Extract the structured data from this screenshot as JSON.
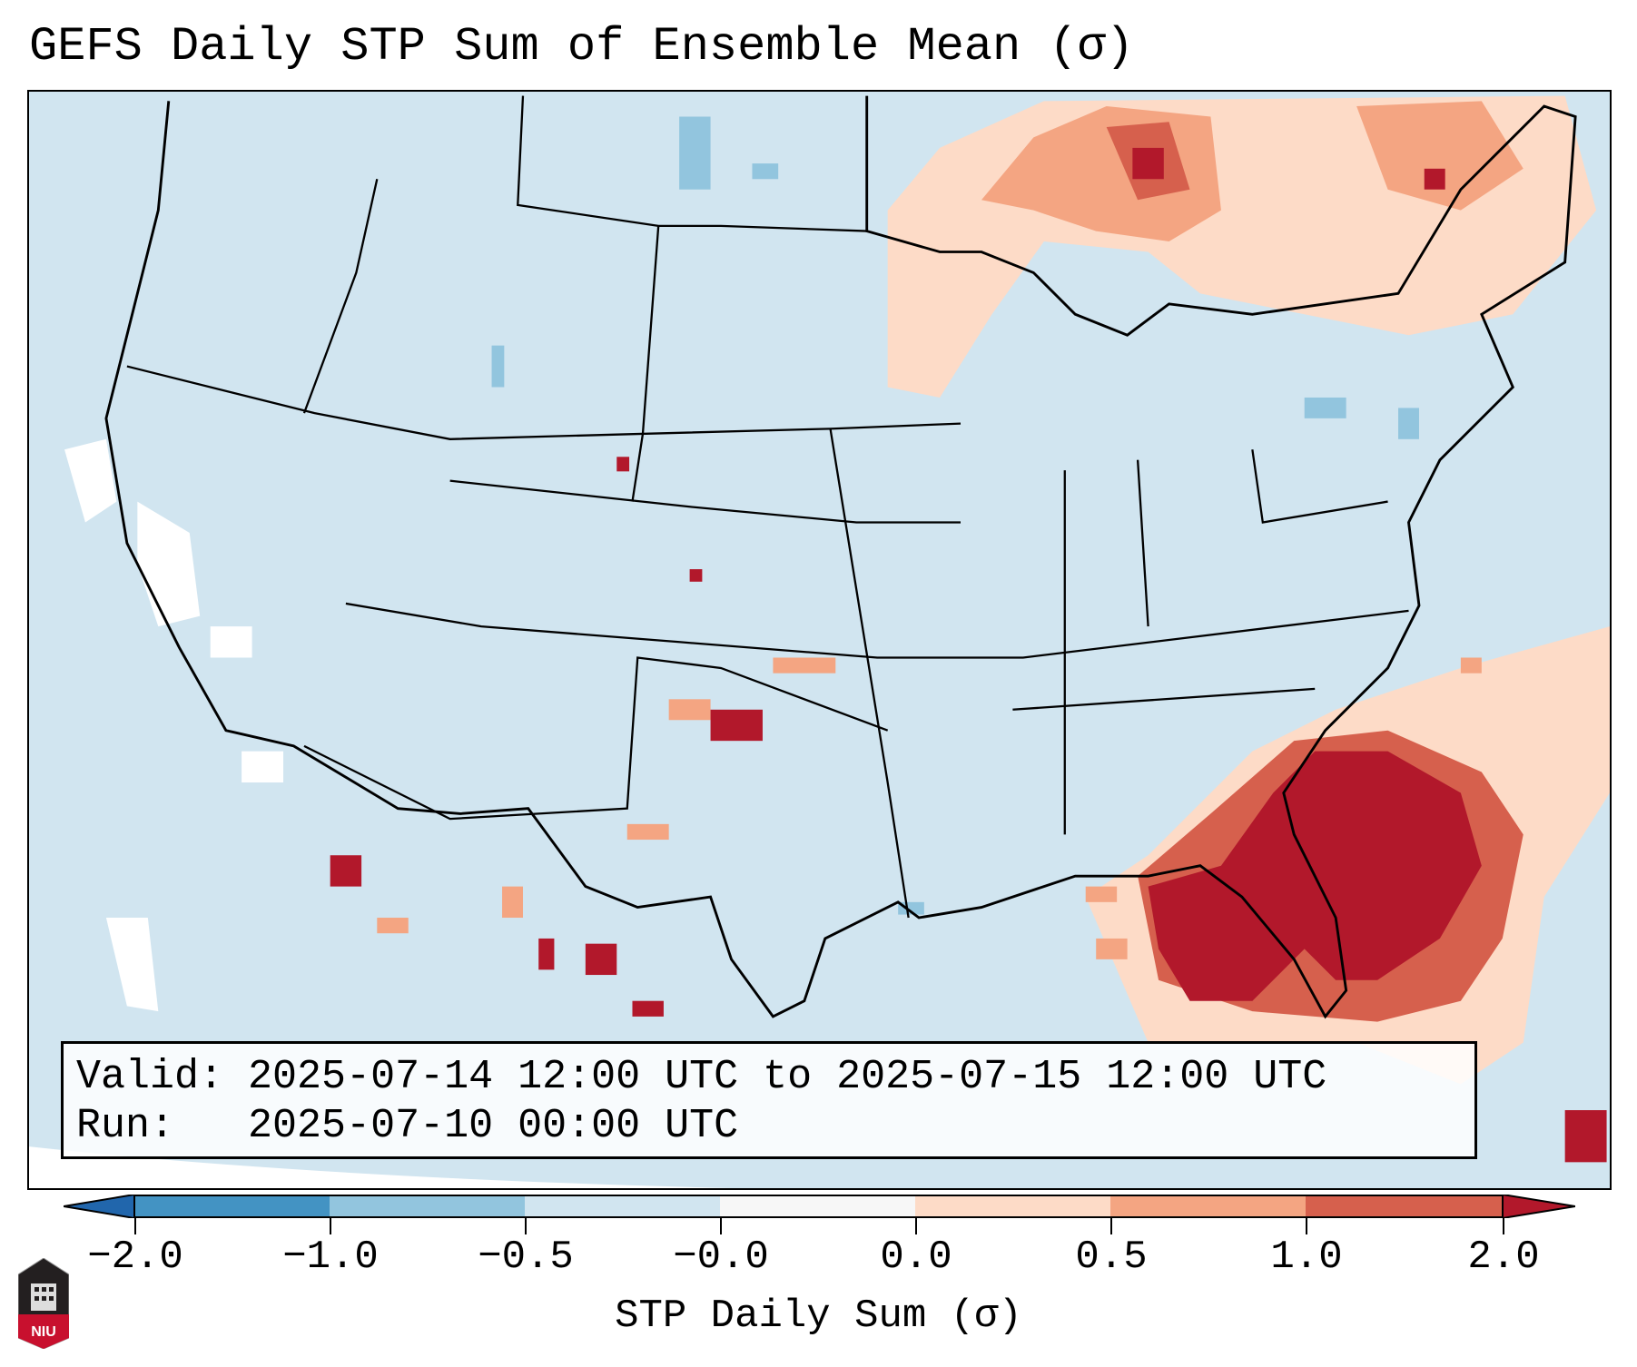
{
  "title": "GEFS Daily STP Sum of Ensemble Mean (σ)",
  "info": {
    "valid_label": "Valid:",
    "valid_value": "2025-07-14 12:00 UTC to 2025-07-15 12:00 UTC",
    "run_label": "Run:",
    "run_value": "2025-07-10 00:00 UTC"
  },
  "colorbar": {
    "label": "STP Daily Sum (σ)",
    "ticks": [
      "−2.0",
      "−1.0",
      "−0.5",
      "−0.0",
      "0.0",
      "0.5",
      "1.0",
      "2.0"
    ],
    "colors": [
      "#2166ac",
      "#4393c3",
      "#92c5de",
      "#d1e5f0",
      "#f7f7f7",
      "#fddbc7",
      "#f4a582",
      "#d6604d",
      "#b2182b"
    ]
  },
  "logo": {
    "text": "NIU"
  }
}
